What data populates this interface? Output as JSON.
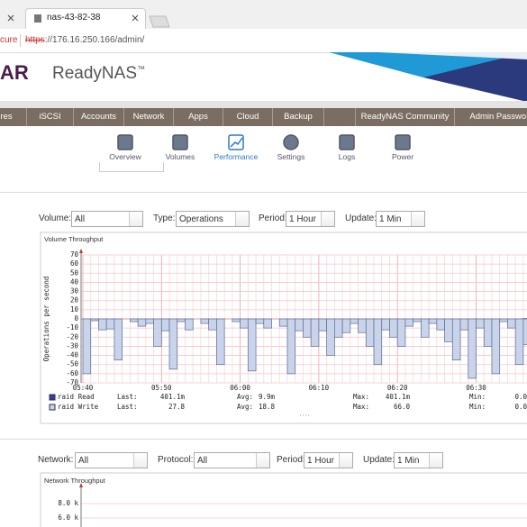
{
  "browser": {
    "tab_title": "nas-43-82-38",
    "security": "cure",
    "url_scheme": "https",
    "url_rest": "://176.16.250.166/admin/"
  },
  "header": {
    "logo": "AR",
    "product": "ReadyNAS",
    "trademark": "™"
  },
  "nav": [
    "res",
    "iSCSI",
    "Accounts",
    "Network",
    "Apps",
    "Cloud",
    "Backup",
    "ReadyNAS Community",
    "Admin Password"
  ],
  "tabs": [
    "Overview",
    "Volumes",
    "Performance",
    "Settings",
    "Logs",
    "Power"
  ],
  "active_tab": "Performance",
  "volume_filters": [
    {
      "label": "Volume:",
      "value": "All"
    },
    {
      "label": "Type:",
      "value": "Operations"
    },
    {
      "label": "Period:",
      "value": "1 Hour"
    },
    {
      "label": "Update:",
      "value": "1 Min"
    }
  ],
  "network_filters": [
    {
      "label": "Network:",
      "value": "All"
    },
    {
      "label": "Protocol:",
      "value": "All"
    },
    {
      "label": "Period:",
      "value": "1 Hour"
    },
    {
      "label": "Update:",
      "value": "1 Min"
    }
  ],
  "chart_data": [
    {
      "type": "bar",
      "title": "Volume Throughput",
      "y_label": "Operations per second",
      "categories": [
        "05:40",
        null,
        null,
        null,
        null,
        null,
        null,
        null,
        null,
        null,
        "05:50",
        null,
        null,
        null,
        null,
        null,
        null,
        null,
        null,
        null,
        "06:00",
        null,
        null,
        null,
        null,
        null,
        null,
        null,
        null,
        null,
        "06:10",
        null,
        null,
        null,
        null,
        null,
        null,
        null,
        null,
        null,
        "06:20",
        null,
        null,
        null,
        null,
        null,
        null,
        null,
        null,
        null,
        "06:30",
        null,
        null,
        null,
        null,
        null,
        null
      ],
      "ylim": [
        -70,
        70
      ],
      "yticks": [
        -70,
        -60,
        -50,
        -40,
        -30,
        -20,
        -10,
        0,
        10,
        20,
        30,
        40,
        50,
        60,
        70
      ],
      "grid": true,
      "stat_labels": [
        "Last:",
        "Avg:",
        "Max:",
        "Min:"
      ],
      "series": [
        {
          "name": "raid Read",
          "color": "#3b3ba6",
          "stats": [
            "401.1m",
            "9.9m",
            "401.1m",
            "0.0"
          ],
          "values": [
            0,
            0,
            0,
            0,
            0,
            0,
            0,
            0,
            0,
            0,
            0,
            0,
            0,
            0,
            0,
            0,
            0,
            0,
            0,
            0,
            0,
            0,
            0,
            0,
            0,
            0,
            0,
            0,
            0,
            0,
            0,
            0,
            0,
            0,
            0,
            0,
            0,
            0,
            0,
            0,
            0,
            0,
            0,
            0,
            0,
            0,
            0,
            0,
            0,
            0,
            0,
            0,
            0,
            0,
            0,
            0,
            0.4
          ]
        },
        {
          "name": "raid Write",
          "color": "#c9d4ea",
          "stats": [
            "27.8",
            "18.8",
            "66.0",
            "0.0"
          ],
          "values": [
            -60,
            -2,
            -12,
            -11,
            -45,
            0,
            -3,
            -8,
            -5,
            -30,
            -13,
            -55,
            -3,
            -12,
            0,
            -5,
            -12,
            -50,
            0,
            -3,
            -10,
            -57,
            -5,
            -10,
            0,
            -8,
            -60,
            -13,
            -20,
            -30,
            -13,
            -40,
            -20,
            -15,
            -5,
            -15,
            -30,
            -50,
            -12,
            -20,
            -30,
            -8,
            -3,
            -20,
            -5,
            -12,
            -25,
            -45,
            -12,
            -65,
            -10,
            -30,
            -60,
            -3,
            -10,
            -50,
            -28
          ]
        }
      ]
    },
    {
      "type": "bar",
      "title": "Network Throughput",
      "ylim": [
        0,
        10000
      ],
      "yticks": [
        {
          "value": 6000,
          "label": "6.0 k"
        },
        {
          "value": 8000,
          "label": "8.0 k"
        }
      ],
      "grid": true
    }
  ]
}
